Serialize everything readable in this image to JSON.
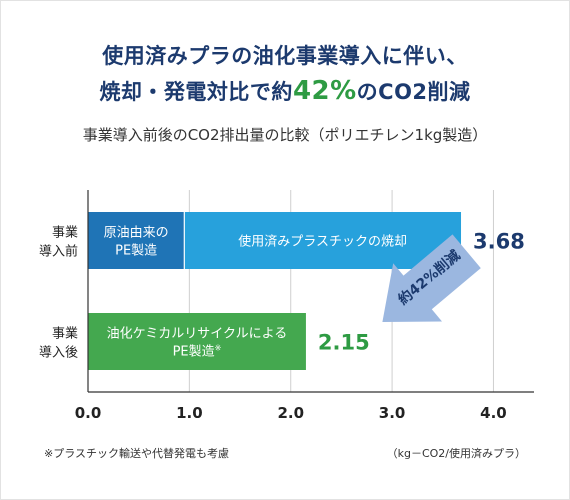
{
  "title": {
    "line1": "使用済みプラの油化事業導入に伴い、",
    "line2_pre": "焼却・発電対比で約",
    "line2_accent": "42%",
    "line2_post": "のCO2削減"
  },
  "subtitle": "事業導入前後のCO2排出量の比較（ポリエチレン1kg製造）",
  "chart_data": {
    "type": "bar",
    "orientation": "horizontal",
    "categories": [
      [
        "事業",
        "導入前"
      ],
      [
        "事業",
        "導入後"
      ]
    ],
    "bars": [
      {
        "total": 3.68,
        "total_label": "3.68",
        "segments": [
          {
            "value": 0.95,
            "label": [
              "原油由来の",
              "PE製造"
            ],
            "color": "#1f74b6"
          },
          {
            "value": 2.73,
            "label": [
              "使用済みプラスチックの焼却"
            ],
            "color": "#27a1dc"
          }
        ]
      },
      {
        "total": 2.15,
        "total_label": "2.15",
        "segments": [
          {
            "value": 2.15,
            "label": [
              "油化ケミカルリサイクルによる",
              "PE製造"
            ],
            "note": "※",
            "color": "#44a84f"
          }
        ]
      }
    ],
    "xlim": [
      0,
      4.4
    ],
    "ticks": [
      0.0,
      1.0,
      2.0,
      3.0,
      4.0
    ],
    "tick_labels": [
      "0.0",
      "1.0",
      "2.0",
      "3.0",
      "4.0"
    ],
    "grid": true,
    "annotation": {
      "label": "約42%削減",
      "color": "#9bb7e0"
    },
    "colors": {
      "total_before": "#1c3a6e",
      "total_after": "#2e9b43"
    }
  },
  "footnote": "※プラスチック輸送や代替発電も考慮",
  "unit": "（kg－CO2/使用済みプラ）"
}
